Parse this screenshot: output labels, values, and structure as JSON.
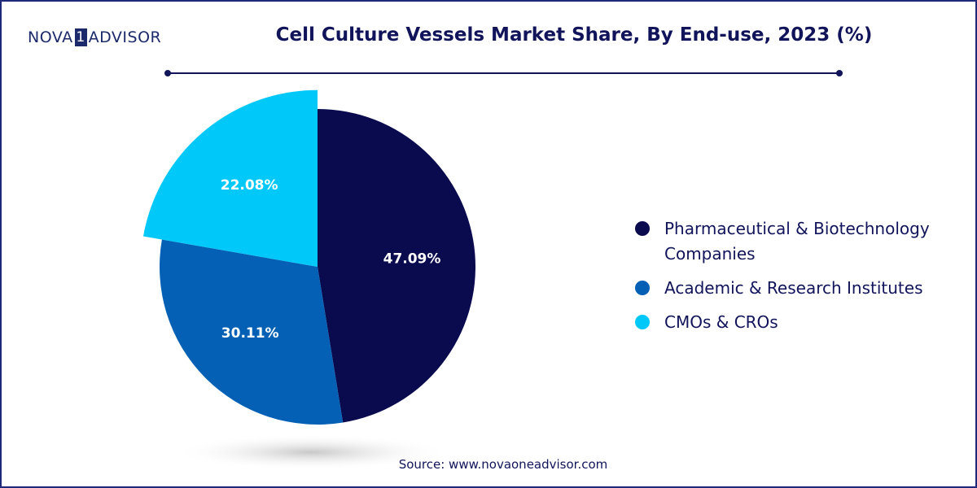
{
  "brand": {
    "part1": "NOVA",
    "one": "1",
    "part2": "ADVISOR"
  },
  "title": "Cell Culture Vessels Market Share, By End-use, 2023 (%)",
  "source": "Source: www.novaoneadvisor.com",
  "colors": {
    "title": "#11145a",
    "pharma": "#0a0a4f",
    "academic": "#0460b4",
    "cmo": "#00c8f8"
  },
  "chart_data": {
    "type": "pie",
    "title": "Cell Culture Vessels Market Share, By End-use, 2023 (%)",
    "unit": "%",
    "legend_position": "right",
    "slices": [
      {
        "name": "Pharmaceutical & Biotechnology Companies",
        "legend_lines": [
          "Pharmaceutical & Biotechnology",
          "Companies"
        ],
        "value": 47.09,
        "label": "47.09%",
        "color": "#0a0a4f"
      },
      {
        "name": "Academic & Research Institutes",
        "legend_lines": [
          "Academic & Research Institutes"
        ],
        "value": 30.11,
        "label": "30.11%",
        "color": "#0460b4"
      },
      {
        "name": "CMOs & CROs",
        "legend_lines": [
          "CMOs & CROs"
        ],
        "value": 22.08,
        "label": "22.08%",
        "color": "#00c8f8",
        "exploded": true
      }
    ]
  }
}
